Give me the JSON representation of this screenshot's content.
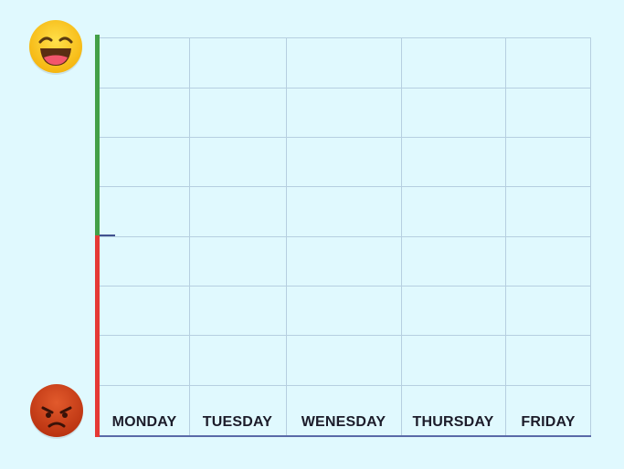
{
  "days": [
    "MONDAY",
    "TUESDAY",
    "WENESDAY",
    "THURSDAY",
    "FRIDAY"
  ],
  "colors": {
    "background": "#e0f9fe",
    "happy_axis": "#43a047",
    "angry_axis": "#e53935",
    "grid": "#b6cfe0",
    "baseline": "#5a6aa8"
  },
  "icons": {
    "top": "laughing-face-icon",
    "bottom": "angry-face-icon"
  }
}
